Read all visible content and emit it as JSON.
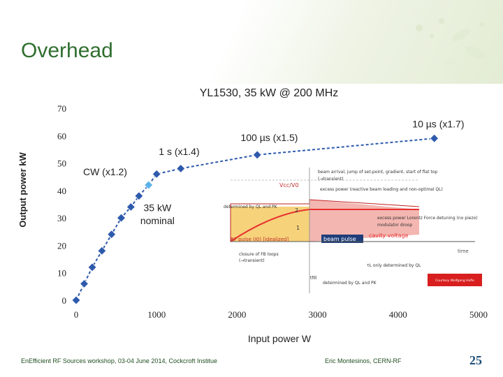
{
  "slide": {
    "title": "Overhead",
    "footer_left": "EnEfficient RF Sources workshop, 03-04 June 2014, Cockcroft Institue",
    "footer_right": "Eric Montesinos, CERN-RF",
    "page_number": "25"
  },
  "inset": {
    "label_vcc": "Vcc/V0",
    "note_beam_arrival": "beam arrival, jump of set-point, gradient, start of flat top",
    "note_transient": "(→transient)",
    "note_excess_beam": "excess power (reactive beam loading and non-optimal QL)",
    "note_determined_top": "determined by QL and PK",
    "label_2": "2",
    "note_lorentz": "excess power Lorentz Force detuning (no piezo)",
    "note_modulator": "modulator droop",
    "label_1": "1",
    "label_rf_pulse": "RF pulse (I0) [idealized]",
    "label_beam_pulse": "beam pulse",
    "label_cavity_voltage": "cavity voltage",
    "label_time": "time",
    "note_closure_fb": "closure of FB loops",
    "note_closure_transient": "(→transient)",
    "note_tau": "τL only determined by QL",
    "label_tfill": "tfill",
    "note_determined_bottom": "determined by QL and PK",
    "label_source": "Courtesy Wolfgang Hofle",
    "colors": {
      "yellow": "#f6d27a",
      "pink": "#f3b6b0",
      "red": "#e83030",
      "navy": "#1f3e7a"
    }
  },
  "chart_data": {
    "type": "line",
    "title": "YL1530, 35 kW @ 200 MHz",
    "xlabel": "Input power W",
    "ylabel": "Output power kW",
    "xlim": [
      0,
      5000
    ],
    "ylim": [
      0,
      70
    ],
    "xticks": [
      "0",
      "1000",
      "2000",
      "3000",
      "4000",
      "5000"
    ],
    "yticks": [
      "0",
      "10",
      "20",
      "30",
      "40",
      "50",
      "60",
      "70"
    ],
    "series": [
      {
        "color": "#2e5aac",
        "marker_color": "#2e5aac",
        "highlight_color": "#59b3ea",
        "highlight_index": 8,
        "points": [
          [
            0,
            0
          ],
          [
            100,
            6
          ],
          [
            200,
            12
          ],
          [
            320,
            18
          ],
          [
            440,
            24
          ],
          [
            560,
            30
          ],
          [
            680,
            34
          ],
          [
            780,
            38
          ],
          [
            900,
            42
          ],
          [
            1000,
            46
          ],
          [
            1300,
            48
          ],
          [
            2250,
            53
          ],
          [
            4450,
            59
          ]
        ]
      }
    ],
    "annotations": [
      {
        "text": "10 µs (x1.7)",
        "x": 4500,
        "y": 63
      },
      {
        "text": "100 µs (x1.5)",
        "x": 2400,
        "y": 58
      },
      {
        "text": "1 s (x1.4)",
        "x": 1280,
        "y": 53
      },
      {
        "text": "CW (x1.2)",
        "x": 360,
        "y": 45.6
      },
      {
        "text": "35 kW",
        "x": 1010,
        "y": 32.5
      },
      {
        "text": "nominal",
        "x": 1010,
        "y": 27.8
      }
    ],
    "grid": false,
    "legend": "none"
  }
}
